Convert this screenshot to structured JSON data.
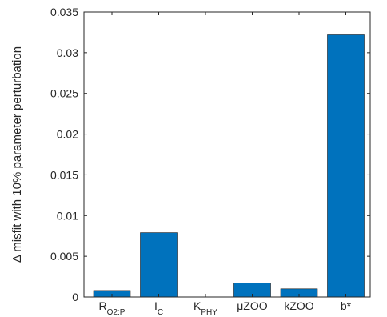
{
  "chart_data": {
    "type": "bar",
    "title": "",
    "xlabel": "",
    "ylabel": "Δ misfit with 10% parameter perturbation",
    "ylim": [
      0,
      0.035
    ],
    "yticks": [
      "0",
      "0.005",
      "0.01",
      "0.015",
      "0.02",
      "0.025",
      "0.03",
      "0.035"
    ],
    "categories": [
      {
        "main": "R",
        "sub": "O2:P"
      },
      {
        "main": "I",
        "sub": "C"
      },
      {
        "main": "K",
        "sub": "PHY"
      },
      {
        "main": "μZOO",
        "sub": ""
      },
      {
        "main": "kZOO",
        "sub": ""
      },
      {
        "main": "b*",
        "sub": ""
      }
    ],
    "values": [
      0.0008,
      0.0079,
      0.0,
      0.0017,
      0.001,
      0.0322
    ],
    "bar_color": "#0072BD",
    "grid": false
  }
}
